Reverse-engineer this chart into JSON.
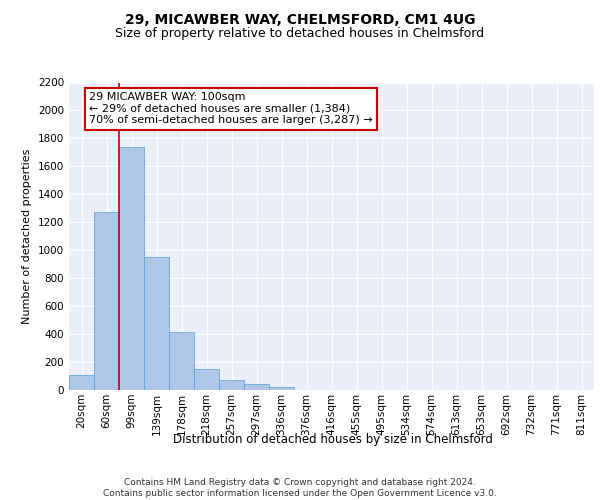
{
  "title1": "29, MICAWBER WAY, CHELMSFORD, CM1 4UG",
  "title2": "Size of property relative to detached houses in Chelmsford",
  "xlabel": "Distribution of detached houses by size in Chelmsford",
  "ylabel": "Number of detached properties",
  "categories": [
    "20sqm",
    "60sqm",
    "99sqm",
    "139sqm",
    "178sqm",
    "218sqm",
    "257sqm",
    "297sqm",
    "336sqm",
    "376sqm",
    "416sqm",
    "455sqm",
    "495sqm",
    "534sqm",
    "574sqm",
    "613sqm",
    "653sqm",
    "692sqm",
    "732sqm",
    "771sqm",
    "811sqm"
  ],
  "values": [
    110,
    1270,
    1735,
    950,
    415,
    150,
    75,
    42,
    25,
    0,
    0,
    0,
    0,
    0,
    0,
    0,
    0,
    0,
    0,
    0,
    0
  ],
  "bar_color": "#aec6e8",
  "bar_edge_color": "#5a9fd4",
  "vline_x_index": 2,
  "vline_color": "#cc0000",
  "annotation_text": "29 MICAWBER WAY: 100sqm\n← 29% of detached houses are smaller (1,384)\n70% of semi-detached houses are larger (3,287) →",
  "annotation_box_color": "#ffffff",
  "annotation_box_edge_color": "#cc0000",
  "ylim": [
    0,
    2200
  ],
  "yticks": [
    0,
    200,
    400,
    600,
    800,
    1000,
    1200,
    1400,
    1600,
    1800,
    2000,
    2200
  ],
  "footer": "Contains HM Land Registry data © Crown copyright and database right 2024.\nContains public sector information licensed under the Open Government Licence v3.0.",
  "background_color": "#eaeff9",
  "grid_color": "#ffffff",
  "title1_fontsize": 10,
  "title2_fontsize": 9,
  "xlabel_fontsize": 8.5,
  "ylabel_fontsize": 8,
  "tick_fontsize": 7.5,
  "annotation_fontsize": 8,
  "footer_fontsize": 6.5
}
